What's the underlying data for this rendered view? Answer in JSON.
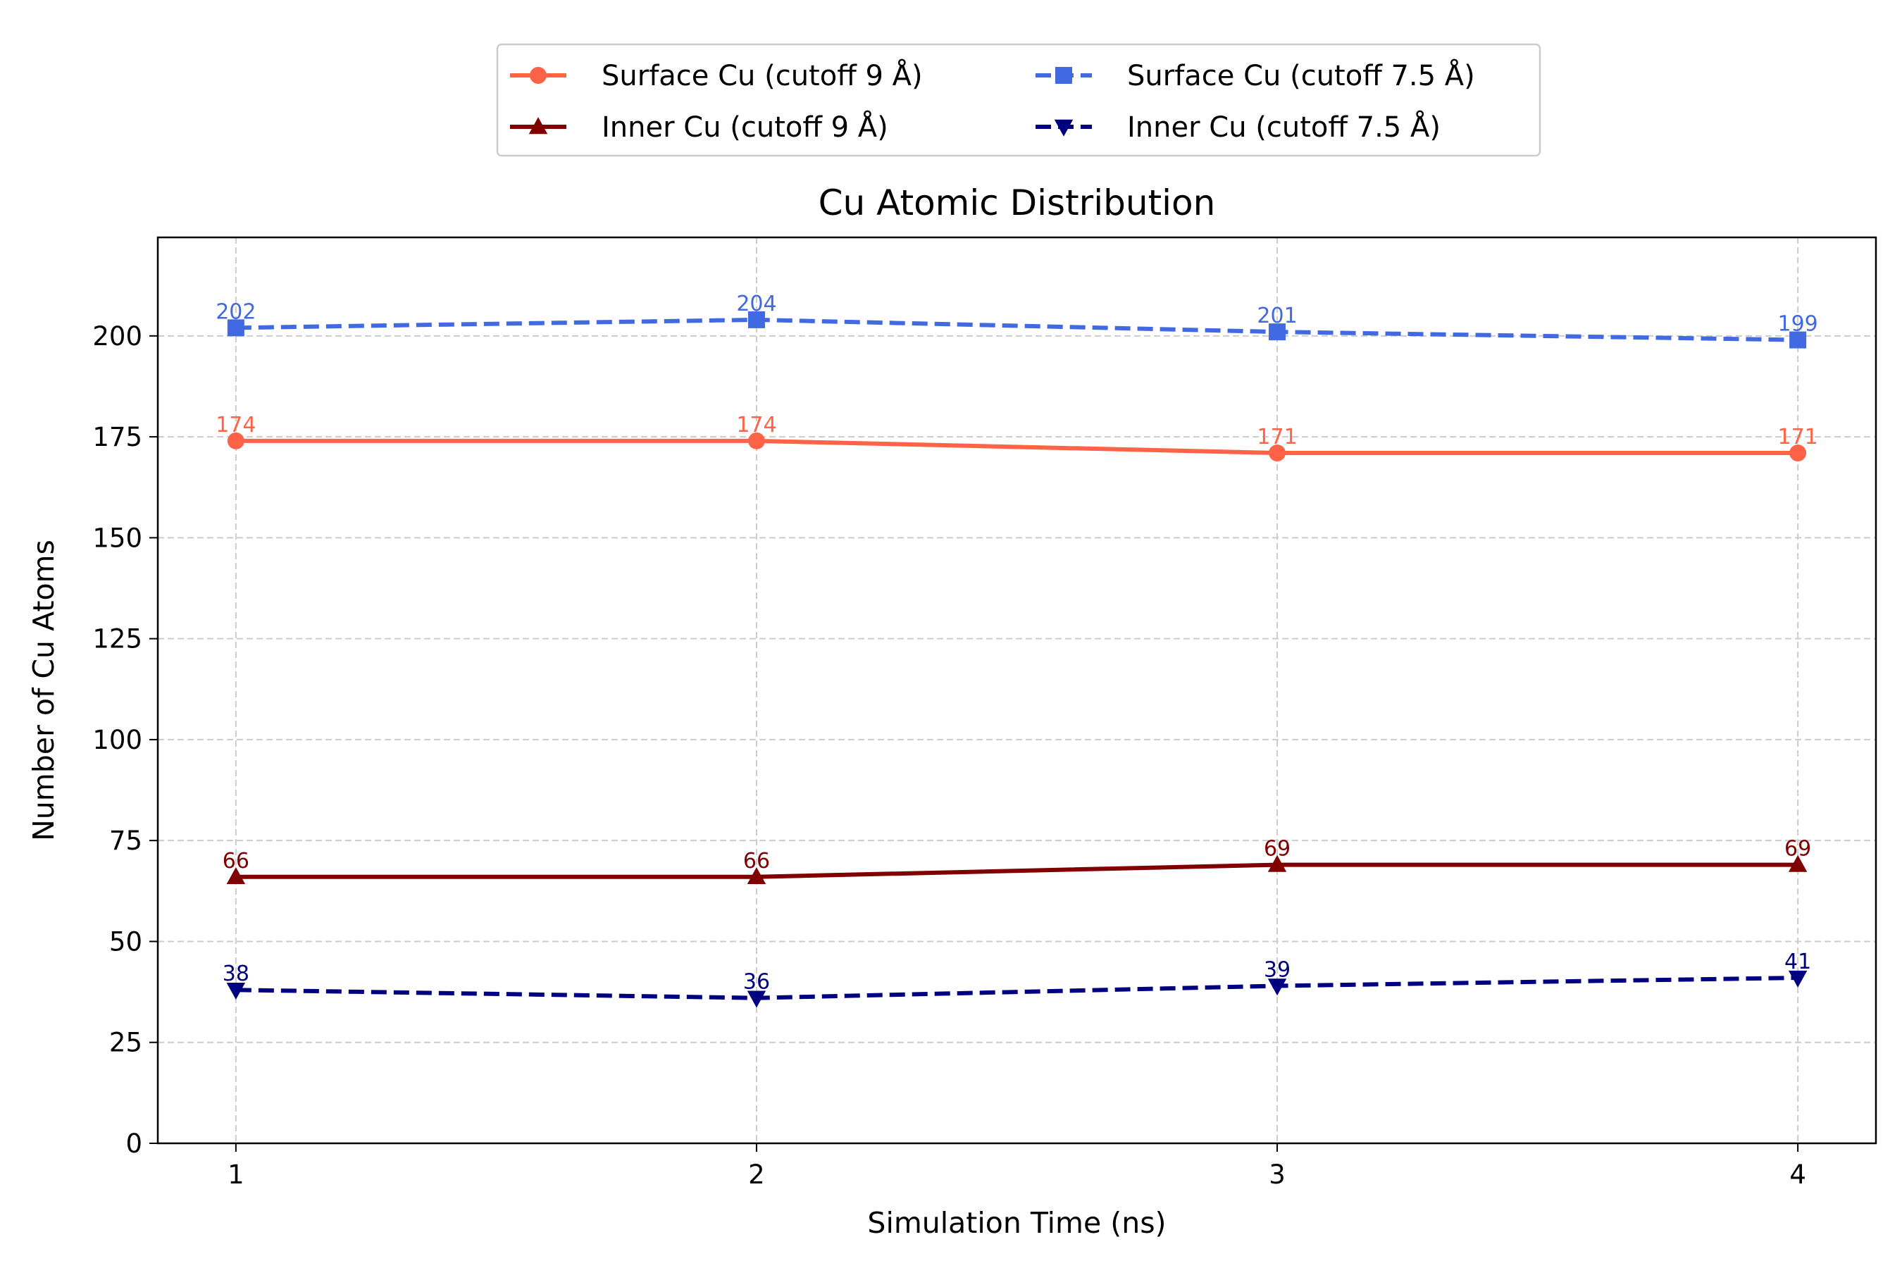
{
  "chart_data": {
    "type": "line",
    "title": "Cu Atomic Distribution",
    "xlabel": "Simulation Time (ns)",
    "ylabel": "Number of Cu Atoms",
    "x": [
      1,
      2,
      3,
      4
    ],
    "x_ticks": [
      "1",
      "2",
      "3",
      "4"
    ],
    "xlim": [
      0.85,
      4.15
    ],
    "ylim": [
      0,
      224.4
    ],
    "y_ticks": [
      "0",
      "25",
      "50",
      "75",
      "100",
      "125",
      "150",
      "175",
      "200"
    ],
    "grid": true,
    "legend_position": "top-center, above plot, 2 columns",
    "series": [
      {
        "name": "Surface Cu (cutoff 9 Å)",
        "values": [
          174,
          174,
          171,
          171
        ],
        "labels": [
          "174",
          "174",
          "171",
          "171"
        ],
        "color": "#ff6347",
        "marker": "circle",
        "line": "solid"
      },
      {
        "name": "Surface Cu (cutoff 7.5 Å)",
        "values": [
          202,
          204,
          201,
          199
        ],
        "labels": [
          "202",
          "204",
          "201",
          "199"
        ],
        "color": "#4169e1",
        "marker": "square",
        "line": "dashed"
      },
      {
        "name": "Inner Cu (cutoff 9 Å)",
        "values": [
          66,
          66,
          69,
          69
        ],
        "labels": [
          "66",
          "66",
          "69",
          "69"
        ],
        "color": "#800000",
        "marker": "triangle-up",
        "line": "solid"
      },
      {
        "name": "Inner Cu (cutoff 7.5 Å)",
        "values": [
          38,
          36,
          39,
          41
        ],
        "labels": [
          "38",
          "36",
          "39",
          "41"
        ],
        "color": "#000080",
        "marker": "triangle-down",
        "line": "dashed"
      }
    ],
    "legend_order": [
      0,
      2,
      1,
      3
    ]
  }
}
